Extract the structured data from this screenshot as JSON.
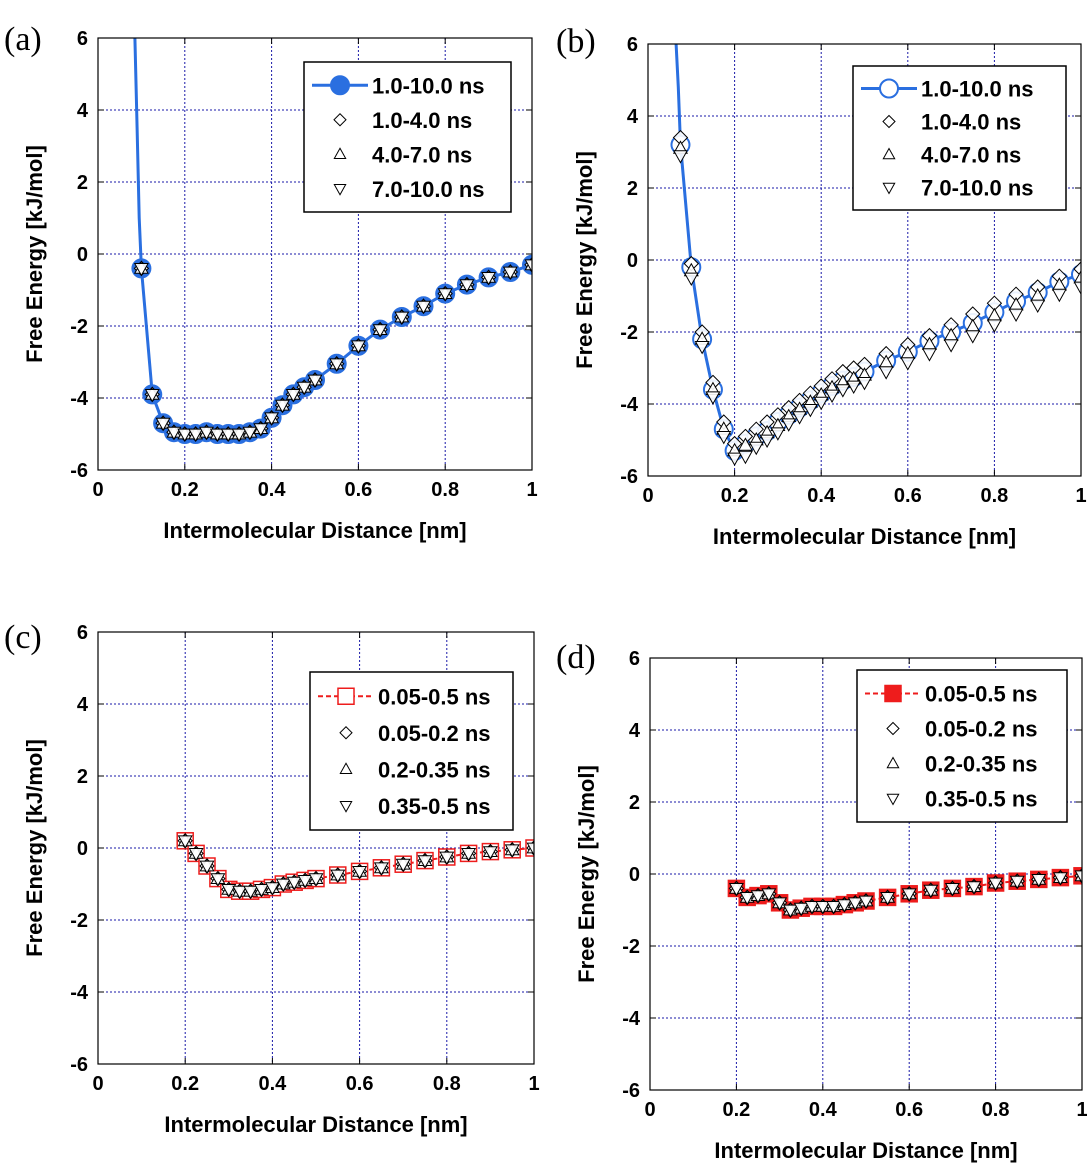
{
  "chart_data": [
    {
      "id": "a",
      "panel_label": "(a)",
      "type": "line",
      "xlabel": "Intermolecular Distance [nm]",
      "ylabel": "Free Energy [kJ/mol]",
      "xlim": [
        0,
        1
      ],
      "ylim": [
        -6,
        6
      ],
      "xticks": [
        "0",
        "0.2",
        "0.4",
        "0.6",
        "0.8",
        "1"
      ],
      "yticks": [
        "-6",
        "-4",
        "-2",
        "0",
        "2",
        "4",
        "6"
      ],
      "grid": true,
      "legend_position": "top-right",
      "highlight_color": "#2a6fe0",
      "main_fill": "filled",
      "main_marker": "circle",
      "curve": {
        "x": [
          0.085,
          0.09,
          0.095,
          0.1
        ],
        "y": [
          6.0,
          3.5,
          1.0,
          -0.4
        ]
      },
      "x": [
        0.1,
        0.125,
        0.15,
        0.175,
        0.2,
        0.225,
        0.25,
        0.275,
        0.3,
        0.325,
        0.35,
        0.375,
        0.4,
        0.425,
        0.45,
        0.475,
        0.5,
        0.55,
        0.6,
        0.65,
        0.7,
        0.75,
        0.8,
        0.85,
        0.9,
        0.95,
        1.0
      ],
      "series": [
        {
          "name": "1.0-10.0 ns",
          "marker": "circle",
          "y": [
            -0.4,
            -3.9,
            -4.7,
            -4.95,
            -5.0,
            -5.0,
            -4.95,
            -5.0,
            -5.0,
            -5.0,
            -4.95,
            -4.85,
            -4.55,
            -4.2,
            -3.9,
            -3.7,
            -3.5,
            -3.05,
            -2.55,
            -2.1,
            -1.75,
            -1.45,
            -1.1,
            -0.85,
            -0.65,
            -0.5,
            -0.3
          ]
        },
        {
          "name": "1.0-4.0 ns",
          "marker": "diamond",
          "y": [
            -0.4,
            -3.9,
            -4.7,
            -4.95,
            -5.0,
            -5.0,
            -4.95,
            -5.0,
            -5.0,
            -5.0,
            -4.95,
            -4.85,
            -4.55,
            -4.2,
            -3.9,
            -3.7,
            -3.5,
            -3.05,
            -2.55,
            -2.1,
            -1.75,
            -1.45,
            -1.1,
            -0.85,
            -0.65,
            -0.5,
            -0.3
          ]
        },
        {
          "name": "4.0-7.0 ns",
          "marker": "triangle-up",
          "y": [
            -0.4,
            -3.9,
            -4.7,
            -4.95,
            -5.0,
            -5.0,
            -4.95,
            -5.0,
            -5.0,
            -5.0,
            -4.95,
            -4.85,
            -4.55,
            -4.2,
            -3.9,
            -3.7,
            -3.5,
            -3.05,
            -2.55,
            -2.1,
            -1.75,
            -1.45,
            -1.1,
            -0.85,
            -0.65,
            -0.5,
            -0.3
          ]
        },
        {
          "name": "7.0-10.0 ns",
          "marker": "triangle-down",
          "y": [
            -0.4,
            -3.9,
            -4.7,
            -4.95,
            -5.0,
            -5.0,
            -4.95,
            -5.0,
            -5.0,
            -5.0,
            -4.95,
            -4.85,
            -4.55,
            -4.2,
            -3.9,
            -3.7,
            -3.5,
            -3.05,
            -2.55,
            -2.1,
            -1.75,
            -1.45,
            -1.1,
            -0.85,
            -0.65,
            -0.5,
            -0.3
          ]
        }
      ]
    },
    {
      "id": "b",
      "panel_label": "(b)",
      "type": "line",
      "xlabel": "Intermolecular Distance [nm]",
      "ylabel": "Free Energy [kJ/mol]",
      "xlim": [
        0,
        1
      ],
      "ylim": [
        -6,
        6
      ],
      "xticks": [
        "0",
        "0.2",
        "0.4",
        "0.6",
        "0.8",
        "1"
      ],
      "yticks": [
        "-6",
        "-4",
        "-2",
        "0",
        "2",
        "4",
        "6"
      ],
      "grid": true,
      "legend_position": "top-right",
      "highlight_color": "#2a6fe0",
      "main_fill": "open",
      "main_marker": "circle",
      "curve": {
        "x": [
          0.065,
          0.07,
          0.075
        ],
        "y": [
          6.0,
          4.8,
          3.2
        ]
      },
      "x": [
        0.075,
        0.1,
        0.125,
        0.15,
        0.175,
        0.2,
        0.225,
        0.25,
        0.275,
        0.3,
        0.325,
        0.35,
        0.375,
        0.4,
        0.425,
        0.45,
        0.475,
        0.5,
        0.55,
        0.6,
        0.65,
        0.7,
        0.75,
        0.8,
        0.85,
        0.9,
        0.95,
        1.0
      ],
      "series": [
        {
          "name": "1.0-10.0 ns",
          "marker": "circle",
          "y": [
            3.2,
            -0.2,
            -2.2,
            -3.6,
            -4.7,
            -5.3,
            -5.1,
            -4.9,
            -4.75,
            -4.5,
            -4.3,
            -4.1,
            -3.9,
            -3.7,
            -3.5,
            -3.35,
            -3.25,
            -3.1,
            -2.8,
            -2.55,
            -2.25,
            -2.0,
            -1.75,
            -1.45,
            -1.15,
            -0.9,
            -0.6,
            -0.4
          ]
        },
        {
          "name": "1.0-4.0 ns",
          "marker": "diamond",
          "y": [
            3.4,
            -0.1,
            -2.0,
            -3.4,
            -4.5,
            -5.1,
            -4.9,
            -4.7,
            -4.5,
            -4.3,
            -4.1,
            -3.9,
            -3.7,
            -3.5,
            -3.3,
            -3.1,
            -3.0,
            -2.9,
            -2.6,
            -2.35,
            -2.1,
            -1.8,
            -1.5,
            -1.2,
            -0.95,
            -0.75,
            -0.45,
            -0.25
          ]
        },
        {
          "name": "4.0-7.0 ns",
          "marker": "triangle-up",
          "y": [
            3.1,
            -0.3,
            -2.2,
            -3.6,
            -4.7,
            -5.3,
            -5.15,
            -5.0,
            -4.8,
            -4.6,
            -4.35,
            -4.15,
            -3.95,
            -3.75,
            -3.55,
            -3.4,
            -3.3,
            -3.2,
            -2.85,
            -2.6,
            -2.35,
            -2.1,
            -1.85,
            -1.55,
            -1.25,
            -1.0,
            -0.7,
            -0.5
          ]
        },
        {
          "name": "7.0-10.0 ns",
          "marker": "triangle-down",
          "y": [
            2.9,
            -0.5,
            -2.4,
            -3.8,
            -4.9,
            -5.5,
            -5.45,
            -5.2,
            -5.0,
            -4.8,
            -4.55,
            -4.35,
            -4.15,
            -3.95,
            -3.75,
            -3.6,
            -3.5,
            -3.4,
            -3.1,
            -2.85,
            -2.6,
            -2.35,
            -2.1,
            -1.8,
            -1.5,
            -1.25,
            -0.95,
            -0.75
          ]
        }
      ]
    },
    {
      "id": "c",
      "panel_label": "(c)",
      "type": "line",
      "xlabel": "Intermolecular Distance [nm]",
      "ylabel": "Free Energy [kJ/mol]",
      "xlim": [
        0,
        1
      ],
      "ylim": [
        -6,
        6
      ],
      "xticks": [
        "0",
        "0.2",
        "0.4",
        "0.6",
        "0.8",
        "1"
      ],
      "yticks": [
        "-6",
        "-4",
        "-2",
        "0",
        "2",
        "4",
        "6"
      ],
      "grid": true,
      "legend_position": "top-right",
      "highlight_color": "#ee1c1c",
      "main_fill": "open",
      "main_marker": "square",
      "curve": null,
      "x": [
        0.2,
        0.225,
        0.25,
        0.275,
        0.3,
        0.325,
        0.35,
        0.375,
        0.4,
        0.425,
        0.45,
        0.475,
        0.5,
        0.55,
        0.6,
        0.65,
        0.7,
        0.75,
        0.8,
        0.85,
        0.9,
        0.95,
        1.0
      ],
      "series": [
        {
          "name": "0.05-0.5 ns",
          "marker": "square",
          "y": [
            0.2,
            -0.15,
            -0.5,
            -0.85,
            -1.15,
            -1.2,
            -1.2,
            -1.15,
            -1.1,
            -1.0,
            -0.95,
            -0.9,
            -0.85,
            -0.75,
            -0.65,
            -0.55,
            -0.45,
            -0.35,
            -0.25,
            -0.15,
            -0.1,
            -0.05,
            0.0
          ]
        },
        {
          "name": "0.05-0.2 ns",
          "marker": "diamond",
          "y": [
            0.2,
            -0.15,
            -0.5,
            -0.85,
            -1.15,
            -1.2,
            -1.2,
            -1.15,
            -1.1,
            -1.0,
            -0.95,
            -0.9,
            -0.85,
            -0.75,
            -0.65,
            -0.55,
            -0.45,
            -0.35,
            -0.25,
            -0.15,
            -0.1,
            -0.05,
            0.0
          ]
        },
        {
          "name": "0.2-0.35 ns",
          "marker": "triangle-up",
          "y": [
            0.2,
            -0.15,
            -0.5,
            -0.85,
            -1.15,
            -1.2,
            -1.2,
            -1.15,
            -1.1,
            -1.0,
            -0.95,
            -0.9,
            -0.85,
            -0.75,
            -0.65,
            -0.55,
            -0.45,
            -0.35,
            -0.25,
            -0.15,
            -0.1,
            -0.05,
            0.0
          ]
        },
        {
          "name": "0.35-0.5 ns",
          "marker": "triangle-down",
          "y": [
            0.2,
            -0.15,
            -0.5,
            -0.85,
            -1.15,
            -1.2,
            -1.2,
            -1.15,
            -1.1,
            -1.0,
            -0.95,
            -0.9,
            -0.85,
            -0.75,
            -0.65,
            -0.55,
            -0.45,
            -0.35,
            -0.25,
            -0.15,
            -0.1,
            -0.05,
            0.0
          ]
        }
      ]
    },
    {
      "id": "d",
      "panel_label": "(d)",
      "type": "line",
      "xlabel": "Intermolecular Distance [nm]",
      "ylabel": "Free Energy [kJ/mol]",
      "xlim": [
        0,
        1
      ],
      "ylim": [
        -6,
        6
      ],
      "xticks": [
        "0",
        "0.2",
        "0.4",
        "0.6",
        "0.8",
        "1"
      ],
      "yticks": [
        "-6",
        "-4",
        "-2",
        "0",
        "2",
        "4",
        "6"
      ],
      "grid": true,
      "legend_position": "top-right",
      "highlight_color": "#ee1c1c",
      "main_fill": "filled",
      "main_marker": "square",
      "curve": null,
      "x": [
        0.2,
        0.225,
        0.25,
        0.275,
        0.3,
        0.325,
        0.35,
        0.375,
        0.4,
        0.425,
        0.45,
        0.475,
        0.5,
        0.55,
        0.6,
        0.65,
        0.7,
        0.75,
        0.8,
        0.85,
        0.9,
        0.95,
        1.0
      ],
      "series": [
        {
          "name": "0.05-0.5 ns",
          "marker": "square",
          "y": [
            -0.4,
            -0.65,
            -0.6,
            -0.55,
            -0.8,
            -1.0,
            -0.95,
            -0.9,
            -0.9,
            -0.9,
            -0.85,
            -0.8,
            -0.75,
            -0.65,
            -0.55,
            -0.45,
            -0.4,
            -0.35,
            -0.25,
            -0.2,
            -0.15,
            -0.1,
            -0.05
          ]
        },
        {
          "name": "0.05-0.2 ns",
          "marker": "diamond",
          "y": [
            -0.4,
            -0.65,
            -0.6,
            -0.55,
            -0.8,
            -1.0,
            -0.95,
            -0.9,
            -0.9,
            -0.9,
            -0.85,
            -0.8,
            -0.75,
            -0.65,
            -0.55,
            -0.45,
            -0.4,
            -0.35,
            -0.25,
            -0.2,
            -0.15,
            -0.1,
            -0.05
          ]
        },
        {
          "name": "0.2-0.35 ns",
          "marker": "triangle-up",
          "y": [
            -0.4,
            -0.65,
            -0.6,
            -0.55,
            -0.8,
            -1.0,
            -0.95,
            -0.9,
            -0.9,
            -0.9,
            -0.85,
            -0.8,
            -0.75,
            -0.65,
            -0.55,
            -0.45,
            -0.4,
            -0.35,
            -0.25,
            -0.2,
            -0.15,
            -0.1,
            -0.05
          ]
        },
        {
          "name": "0.35-0.5 ns",
          "marker": "triangle-down",
          "y": [
            -0.4,
            -0.65,
            -0.6,
            -0.55,
            -0.8,
            -1.0,
            -0.95,
            -0.9,
            -0.9,
            -0.9,
            -0.85,
            -0.8,
            -0.75,
            -0.65,
            -0.55,
            -0.45,
            -0.4,
            -0.35,
            -0.25,
            -0.2,
            -0.15,
            -0.1,
            -0.05
          ]
        }
      ]
    }
  ]
}
